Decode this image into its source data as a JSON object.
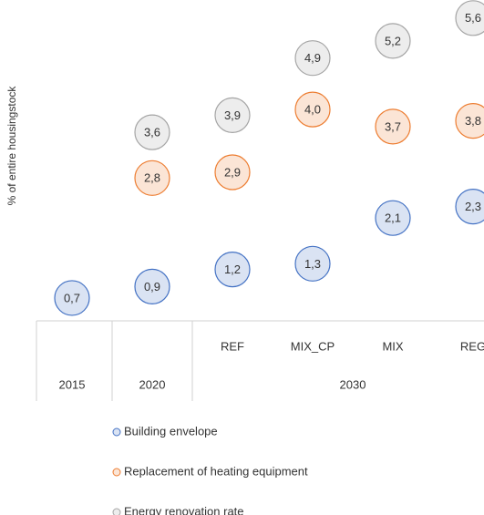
{
  "chart_data": {
    "type": "bubble-dot",
    "y_label": "% of entire housingstock",
    "groups": [
      {
        "label": "2015",
        "categories": [
          null
        ]
      },
      {
        "label": "2020",
        "categories": [
          null
        ]
      },
      {
        "label": "2030",
        "categories": [
          "REF",
          "MIX_CP",
          "MIX",
          "REG"
        ]
      }
    ],
    "series": [
      {
        "name": "Building envelope",
        "color": "#4472c4",
        "fill": "#dae3f3",
        "values": [
          0.7,
          0.9,
          1.2,
          1.3,
          2.1,
          2.3
        ],
        "value_labels": [
          "0,7",
          "0,9",
          "1,2",
          "1,3",
          "2,1",
          "2,3"
        ]
      },
      {
        "name": "Replacement of heating equipment",
        "color": "#ed7d31",
        "fill": "#fbe5d6",
        "values": [
          null,
          2.8,
          2.9,
          4.0,
          3.7,
          3.8
        ],
        "value_labels": [
          null,
          "2,8",
          "2,9",
          "4,0",
          "3,7",
          "3,8"
        ]
      },
      {
        "name": "Energy renovation rate",
        "color": "#a5a5a5",
        "fill": "#ededed",
        "values": [
          null,
          3.6,
          3.9,
          4.9,
          5.2,
          5.6
        ],
        "value_labels": [
          null,
          "3,6",
          "3,9",
          "4,9",
          "5,2",
          "5,6"
        ]
      }
    ],
    "ylim": [
      0.3,
      5.9
    ],
    "legend": "bottom"
  }
}
